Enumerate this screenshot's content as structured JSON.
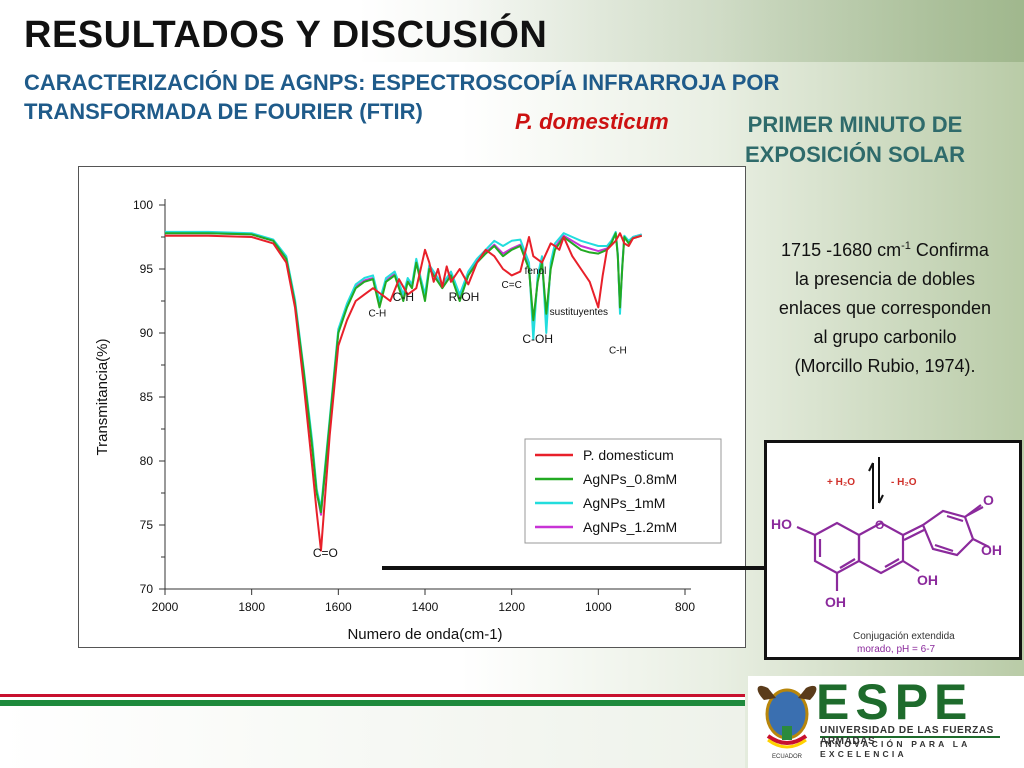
{
  "header": {
    "title": "RESULTADOS Y DISCUSIÓN",
    "subtitle": "CARACTERIZACIÓN DE AGNPS: ESPECTROSCOPÍA INFRARROJA POR TRANSFORMADA DE FOURIER (FTIR)",
    "species": "P. domesticum",
    "exposure": "PRIMER MINUTO DE EXPOSICIÓN SOLAR"
  },
  "note": {
    "range": "1715 -1680 cm",
    "range_sup": "-1",
    "text": "Confirma la presencia de dobles enlaces que corresponden al grupo carbonilo (Morcillo Rubio, 1974)."
  },
  "chart_data": {
    "type": "line",
    "xlabel": "Numero de onda(cm-1)",
    "ylabel": "Transmitancia(%)",
    "xlim": [
      2000,
      800
    ],
    "ylim": [
      70,
      100
    ],
    "xticks": [
      2000,
      1800,
      1600,
      1400,
      1200,
      1000,
      800
    ],
    "yticks": [
      70,
      75,
      80,
      85,
      90,
      95,
      100
    ],
    "legend_position": "lower-right",
    "series": [
      {
        "name": "P. domesticum",
        "color": "#e8202a",
        "x": [
          2000,
          1900,
          1800,
          1750,
          1720,
          1700,
          1680,
          1660,
          1650,
          1640,
          1620,
          1600,
          1580,
          1560,
          1540,
          1520,
          1500,
          1480,
          1460,
          1440,
          1420,
          1410,
          1400,
          1390,
          1380,
          1370,
          1360,
          1350,
          1340,
          1320,
          1300,
          1280,
          1260,
          1240,
          1220,
          1200,
          1180,
          1160,
          1150,
          1130,
          1110,
          1100,
          1090,
          1080,
          1060,
          1040,
          1020,
          1000,
          990,
          980,
          960,
          950,
          940,
          930,
          920,
          900
        ],
        "y": [
          97.6,
          97.6,
          97.5,
          97.0,
          95.5,
          92.0,
          86.0,
          79.5,
          76.0,
          73.0,
          82.0,
          89.0,
          91.0,
          92.5,
          93.0,
          93.5,
          93.0,
          92.5,
          94.2,
          93.0,
          93.5,
          95.0,
          96.5,
          95.5,
          94.0,
          95.0,
          93.6,
          95.2,
          94.0,
          95.0,
          93.8,
          95.5,
          96.5,
          96.0,
          95.0,
          94.5,
          94.8,
          97.5,
          96.0,
          95.5,
          97.0,
          96.8,
          96.5,
          97.5,
          96.0,
          95.0,
          94.0,
          92.0,
          94.5,
          96.5,
          97.2,
          97.8,
          97.0,
          96.8,
          97.4,
          97.6
        ]
      },
      {
        "name": "AgNPs_0.8mM",
        "color": "#22aa22",
        "x": [
          2000,
          1900,
          1800,
          1750,
          1720,
          1700,
          1680,
          1660,
          1650,
          1640,
          1620,
          1600,
          1580,
          1560,
          1540,
          1520,
          1505,
          1490,
          1470,
          1450,
          1440,
          1430,
          1420,
          1410,
          1400,
          1390,
          1380,
          1370,
          1360,
          1340,
          1320,
          1300,
          1280,
          1260,
          1240,
          1220,
          1200,
          1180,
          1160,
          1150,
          1140,
          1130,
          1120,
          1110,
          1100,
          1080,
          1060,
          1040,
          1020,
          1000,
          980,
          970,
          960,
          955,
          950,
          945,
          940,
          930,
          920,
          900
        ],
        "y": [
          97.8,
          97.8,
          97.7,
          97.2,
          95.8,
          92.3,
          87.0,
          81.0,
          77.5,
          76.0,
          83.0,
          90.0,
          92.0,
          93.5,
          94.0,
          94.2,
          92.0,
          94.0,
          94.5,
          92.5,
          94.0,
          93.5,
          95.5,
          94.0,
          92.5,
          95.0,
          94.5,
          94.0,
          93.5,
          94.5,
          92.5,
          94.5,
          95.5,
          96.2,
          96.8,
          96.0,
          96.5,
          96.8,
          95.0,
          91.0,
          94.0,
          95.5,
          91.5,
          95.0,
          96.5,
          97.5,
          97.0,
          96.5,
          96.3,
          96.2,
          96.5,
          97.0,
          97.8,
          96.0,
          92.0,
          95.0,
          97.5,
          97.0,
          97.4,
          97.6
        ]
      },
      {
        "name": "AgNPs_1mM",
        "color": "#22dddd",
        "x": [
          2000,
          1900,
          1800,
          1750,
          1720,
          1700,
          1680,
          1660,
          1650,
          1640,
          1620,
          1600,
          1580,
          1560,
          1540,
          1520,
          1505,
          1490,
          1470,
          1450,
          1440,
          1430,
          1420,
          1410,
          1400,
          1390,
          1380,
          1370,
          1360,
          1340,
          1320,
          1300,
          1280,
          1260,
          1240,
          1220,
          1200,
          1180,
          1160,
          1150,
          1140,
          1130,
          1120,
          1110,
          1100,
          1080,
          1060,
          1040,
          1020,
          1000,
          980,
          970,
          960,
          955,
          950,
          945,
          940,
          930,
          920,
          900
        ],
        "y": [
          97.9,
          97.9,
          97.8,
          97.3,
          96.0,
          92.6,
          87.2,
          81.5,
          77.8,
          76.3,
          83.3,
          90.3,
          92.3,
          93.8,
          94.3,
          94.5,
          92.5,
          94.3,
          94.8,
          93.0,
          94.3,
          93.8,
          95.8,
          94.3,
          93.0,
          95.3,
          94.8,
          94.3,
          93.8,
          94.8,
          93.0,
          94.8,
          95.8,
          96.5,
          97.2,
          96.8,
          97.2,
          97.3,
          95.5,
          89.5,
          94.5,
          96.0,
          90.0,
          95.5,
          97.0,
          97.8,
          97.5,
          97.2,
          97.0,
          96.8,
          96.8,
          97.2,
          97.9,
          96.2,
          91.5,
          95.2,
          97.6,
          97.2,
          97.5,
          97.7
        ]
      },
      {
        "name": "AgNPs_1.2mM",
        "color": "#c833d6",
        "x": [
          2000,
          1900,
          1800,
          1750,
          1720,
          1700,
          1680,
          1660,
          1650,
          1640,
          1620,
          1600,
          1580,
          1560,
          1540,
          1520,
          1505,
          1490,
          1470,
          1450,
          1440,
          1430,
          1420,
          1410,
          1400,
          1390,
          1380,
          1370,
          1360,
          1340,
          1320,
          1300,
          1280,
          1260,
          1240,
          1220,
          1200,
          1180,
          1160,
          1150,
          1140,
          1130,
          1120,
          1110,
          1100,
          1080,
          1060,
          1040,
          1020,
          1000,
          980,
          970,
          960,
          955,
          950,
          945,
          940,
          930,
          920,
          900
        ],
        "y": [
          97.8,
          97.8,
          97.7,
          97.2,
          95.9,
          92.4,
          87.0,
          81.2,
          77.6,
          75.8,
          83.0,
          90.1,
          92.1,
          93.6,
          94.1,
          94.3,
          92.3,
          94.1,
          94.6,
          92.8,
          94.1,
          93.6,
          95.6,
          94.1,
          92.8,
          95.1,
          94.6,
          94.1,
          93.6,
          94.6,
          92.8,
          94.6,
          95.6,
          96.3,
          96.9,
          96.2,
          96.6,
          96.9,
          95.2,
          90.5,
          94.2,
          95.7,
          91.0,
          95.2,
          96.7,
          97.6,
          97.2,
          96.8,
          96.6,
          96.4,
          96.6,
          97.1,
          97.8,
          96.1,
          91.8,
          95.1,
          97.5,
          97.1,
          97.5,
          97.7
        ]
      }
    ],
    "annotations": [
      {
        "text": "C=O",
        "x": 1630,
        "y": 72.5
      },
      {
        "text": "C-H",
        "x": 1510,
        "y": 91.3
      },
      {
        "text": "C-H",
        "x": 1450,
        "y": 92.5
      },
      {
        "text": "R-OH",
        "x": 1310,
        "y": 92.5
      },
      {
        "text": "C=C",
        "x": 1200,
        "y": 93.5
      },
      {
        "text": "fenol",
        "x": 1145,
        "y": 94.6
      },
      {
        "text": "sustituyentes",
        "x": 1045,
        "y": 91.4
      },
      {
        "text": "C-OH",
        "x": 1140,
        "y": 89.2
      },
      {
        "text": "C-H",
        "x": 955,
        "y": 88.4
      }
    ]
  },
  "molecule": {
    "plus_water": "+ H₂O",
    "minus_water": "- H₂O",
    "labels": [
      "HO",
      "OH",
      "OH",
      "OH",
      "O",
      "O"
    ],
    "caption_1": "Conjugación extendida",
    "caption_2": "morado, pH = 6-7"
  },
  "footer": {
    "brand": "ESPE",
    "university": "UNIVERSIDAD DE LAS FUERZAS ARMADAS",
    "motto": "INNOVACIÓN PARA LA EXCELENCIA",
    "seal_text": "ECUADOR"
  }
}
